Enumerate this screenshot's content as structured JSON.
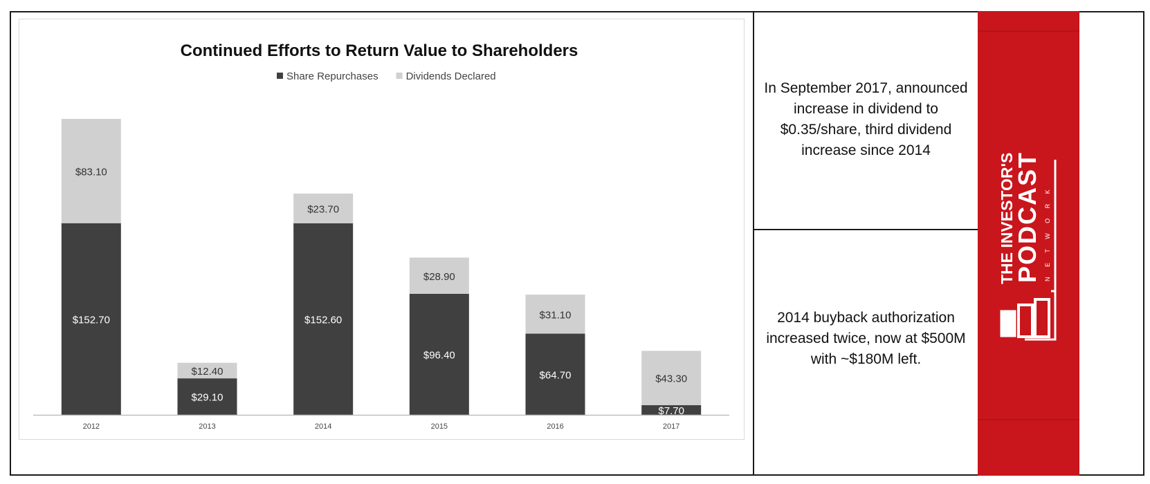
{
  "chart_data": {
    "type": "bar",
    "stacked": true,
    "title": "Continued Efforts to Return Value to Shareholders",
    "legend_position": "top",
    "categories": [
      "2012",
      "2013",
      "2014",
      "2015",
      "2016",
      "2017"
    ],
    "series": [
      {
        "name": "Share Repurchases",
        "color": "#404040",
        "values": [
          152.7,
          29.1,
          152.6,
          96.4,
          64.7,
          7.7
        ],
        "labels": [
          "$152.70",
          "$29.10",
          "$152.60",
          "$96.40",
          "$64.70",
          "$7.70"
        ]
      },
      {
        "name": "Dividends Declared",
        "color": "#d0d0d0",
        "values": [
          83.1,
          12.4,
          23.7,
          28.9,
          31.1,
          43.3
        ],
        "labels": [
          "$83.10",
          "$12.40",
          "$23.70",
          "$28.90",
          "$31.10",
          "$43.30"
        ]
      }
    ],
    "ylim": [
      0,
      260
    ],
    "grid": false
  },
  "notes": {
    "top": "In September 2017, announced increase in dividend to $0.35/share, third dividend increase since 2014",
    "bottom": "2014 buyback authorization increased twice, now at $500M with ~$180M left."
  },
  "brand": {
    "line1": "THE INVESTOR'S",
    "line2": "PODCAST",
    "line3": "N E T W O R K",
    "color": "#c8161c"
  }
}
